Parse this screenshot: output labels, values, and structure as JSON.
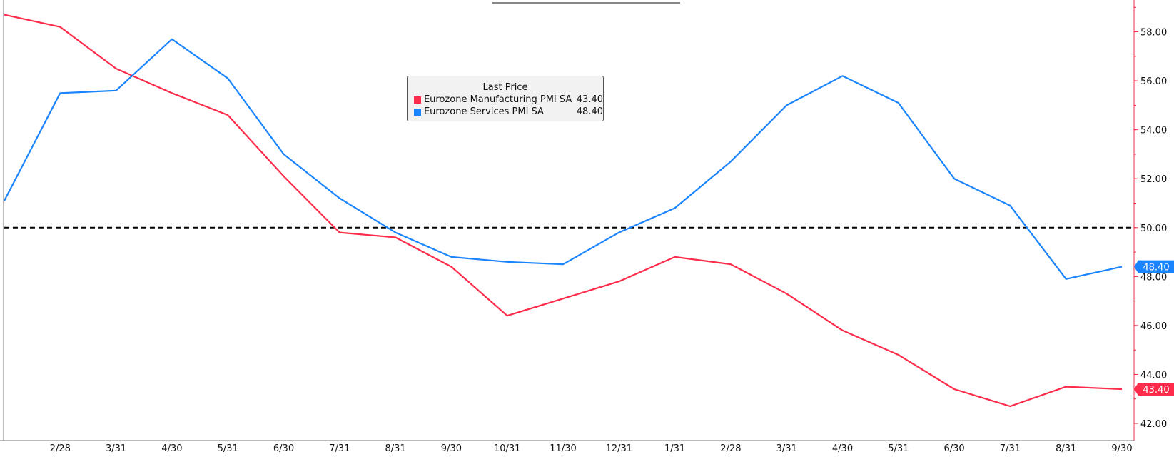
{
  "chart_data": {
    "type": "line",
    "title": "",
    "xlabel": "",
    "ylabel": "",
    "categories": [
      "",
      "2/28",
      "3/31",
      "4/30",
      "5/31",
      "6/30",
      "7/31",
      "8/31",
      "9/30",
      "10/31",
      "11/30",
      "12/31",
      "1/31",
      "2/28",
      "3/31",
      "4/30",
      "5/31",
      "6/30",
      "7/31",
      "8/31",
      "9/30"
    ],
    "series": [
      {
        "name": "Eurozone Manufacturing PMI SA",
        "color": "#ff2b4a",
        "last_value": "43.40",
        "values": [
          58.7,
          58.2,
          56.5,
          55.5,
          54.6,
          52.1,
          49.8,
          49.6,
          48.4,
          46.4,
          47.1,
          47.8,
          48.8,
          48.5,
          47.3,
          45.8,
          44.8,
          43.4,
          42.7,
          43.5,
          43.4
        ]
      },
      {
        "name": "Eurozone Services PMI SA",
        "color": "#1a84ff",
        "last_value": "48.40",
        "values": [
          51.1,
          55.5,
          55.6,
          57.7,
          56.1,
          53.0,
          51.2,
          49.8,
          48.8,
          48.6,
          48.5,
          49.8,
          50.8,
          52.7,
          55.0,
          56.2,
          55.1,
          52.0,
          50.9,
          47.9,
          48.4
        ]
      }
    ],
    "y_ticks": [
      "42.00",
      "44.00",
      "46.00",
      "48.00",
      "50.00",
      "52.00",
      "54.00",
      "56.00",
      "58.00"
    ],
    "ylim": [
      41.3,
      59.3
    ],
    "reference_line": 50,
    "grid": false,
    "legend_title": "Last Price",
    "legend_position": "top-center",
    "axis_color": "#e8334a"
  }
}
